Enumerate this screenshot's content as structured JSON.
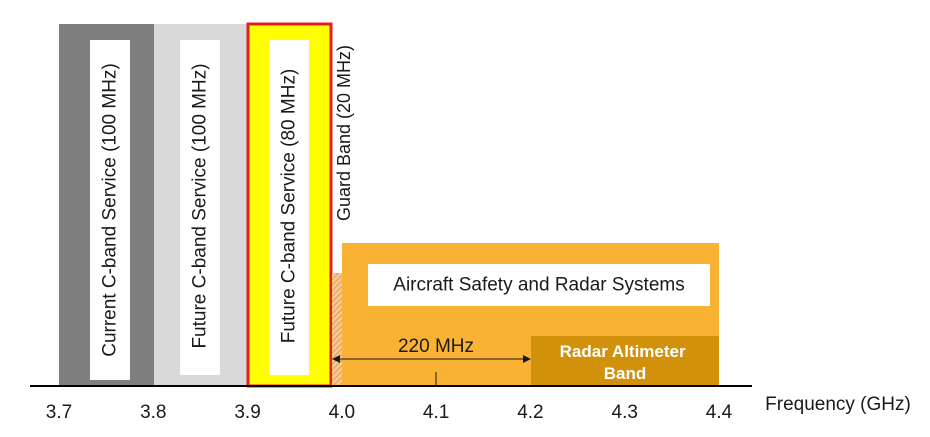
{
  "chart_data": {
    "type": "bar",
    "xlabel": "Frequency (GHz)",
    "ticks": [
      "3.7",
      "3.8",
      "3.9",
      "4.0",
      "4.1",
      "4.2",
      "4.3",
      "4.4"
    ],
    "xlim": [
      3.7,
      4.4
    ],
    "bands": [
      {
        "label": "Current C-band Service (100 MHz)",
        "start": 3.7,
        "end": 3.8,
        "color": "#7f7f7f"
      },
      {
        "label": "Future C-band Service (100 MHz)",
        "start": 3.8,
        "end": 3.9,
        "color": "#d9d9d9"
      },
      {
        "label": "Future C-band Service (80 MHz)",
        "start": 3.9,
        "end": 3.98,
        "color": "#ffff00",
        "outline": "#e02020"
      },
      {
        "label": "Guard Band (20 MHz)",
        "start": 3.98,
        "end": 4.0,
        "color": "#f4b183"
      },
      {
        "label": "Aircraft Safety and Radar Systems",
        "start": 4.0,
        "end": 4.4,
        "color": "#f9b233"
      },
      {
        "label": "Radar Altimeter Band",
        "start": 4.2,
        "end": 4.4,
        "color": "#d1910b"
      }
    ],
    "annotation": {
      "label": "220 MHz",
      "start": 3.98,
      "end": 4.2
    }
  }
}
